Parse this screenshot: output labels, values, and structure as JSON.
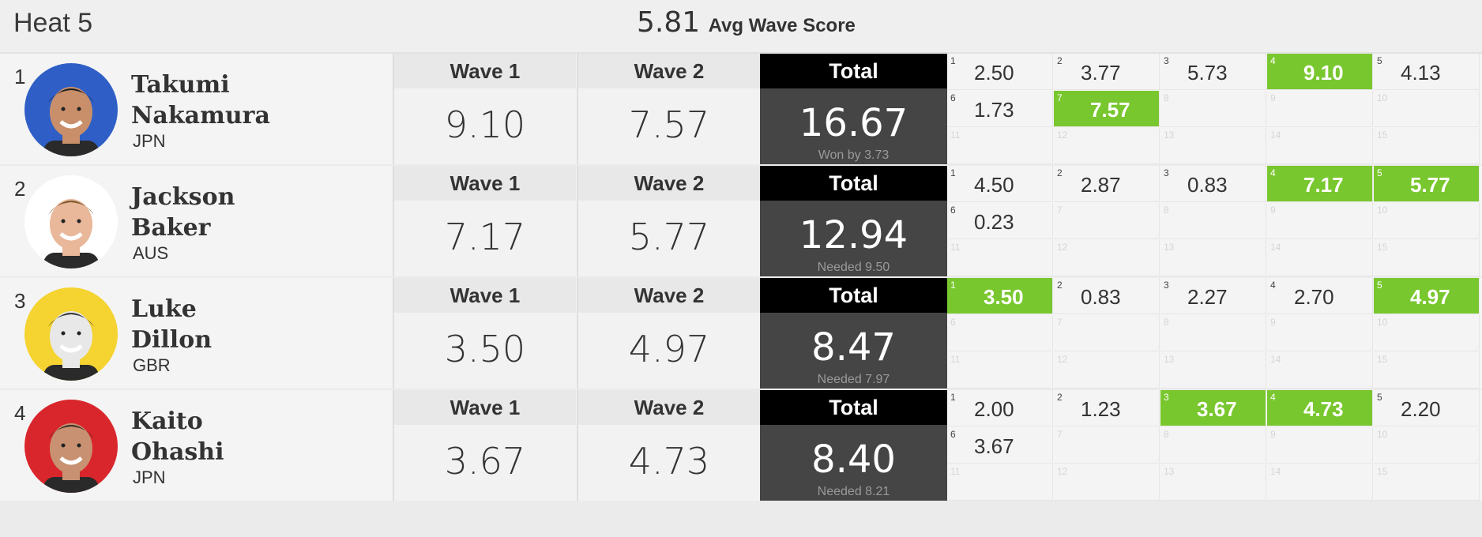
{
  "heat": {
    "title": "Heat 5",
    "avg_value": "5.81",
    "avg_label": "Avg Wave Score"
  },
  "labels": {
    "wave1": "Wave 1",
    "wave2": "Wave 2",
    "total": "Total"
  },
  "colors": {
    "highlight": "#79c72e",
    "total_bg": "#454545",
    "total_header": "#000000"
  },
  "surfers": [
    {
      "rank": "1",
      "first": "Takumi",
      "last": "Nakamura",
      "country": "JPN",
      "avatar_color": "#2f5fc6",
      "wave1": "9.10",
      "wave2": "7.57",
      "total": "16.67",
      "note": "Won by 3.73",
      "waves": [
        {
          "n": "1",
          "v": "2.50",
          "hl": false
        },
        {
          "n": "2",
          "v": "3.77",
          "hl": false
        },
        {
          "n": "3",
          "v": "5.73",
          "hl": false
        },
        {
          "n": "4",
          "v": "9.10",
          "hl": true
        },
        {
          "n": "5",
          "v": "4.13",
          "hl": false
        },
        {
          "n": "6",
          "v": "1.73",
          "hl": false
        },
        {
          "n": "7",
          "v": "7.57",
          "hl": true
        },
        {
          "n": "8",
          "v": "",
          "hl": false
        },
        {
          "n": "9",
          "v": "",
          "hl": false
        },
        {
          "n": "10",
          "v": "",
          "hl": false
        },
        {
          "n": "11",
          "v": "",
          "hl": false
        },
        {
          "n": "12",
          "v": "",
          "hl": false
        },
        {
          "n": "13",
          "v": "",
          "hl": false
        },
        {
          "n": "14",
          "v": "",
          "hl": false
        },
        {
          "n": "15",
          "v": "",
          "hl": false
        }
      ]
    },
    {
      "rank": "2",
      "first": "Jackson",
      "last": "Baker",
      "country": "AUS",
      "avatar_color": "#ffffff",
      "wave1": "7.17",
      "wave2": "5.77",
      "total": "12.94",
      "note": "Needed 9.50",
      "waves": [
        {
          "n": "1",
          "v": "4.50",
          "hl": false
        },
        {
          "n": "2",
          "v": "2.87",
          "hl": false
        },
        {
          "n": "3",
          "v": "0.83",
          "hl": false
        },
        {
          "n": "4",
          "v": "7.17",
          "hl": true
        },
        {
          "n": "5",
          "v": "5.77",
          "hl": true
        },
        {
          "n": "6",
          "v": "0.23",
          "hl": false
        },
        {
          "n": "7",
          "v": "",
          "hl": false
        },
        {
          "n": "8",
          "v": "",
          "hl": false
        },
        {
          "n": "9",
          "v": "",
          "hl": false
        },
        {
          "n": "10",
          "v": "",
          "hl": false
        },
        {
          "n": "11",
          "v": "",
          "hl": false
        },
        {
          "n": "12",
          "v": "",
          "hl": false
        },
        {
          "n": "13",
          "v": "",
          "hl": false
        },
        {
          "n": "14",
          "v": "",
          "hl": false
        },
        {
          "n": "15",
          "v": "",
          "hl": false
        }
      ]
    },
    {
      "rank": "3",
      "first": "Luke",
      "last": "Dillon",
      "country": "GBR",
      "avatar_color": "#f5d330",
      "wave1": "3.50",
      "wave2": "4.97",
      "total": "8.47",
      "note": "Needed 7.97",
      "waves": [
        {
          "n": "1",
          "v": "3.50",
          "hl": true
        },
        {
          "n": "2",
          "v": "0.83",
          "hl": false
        },
        {
          "n": "3",
          "v": "2.27",
          "hl": false
        },
        {
          "n": "4",
          "v": "2.70",
          "hl": false
        },
        {
          "n": "5",
          "v": "4.97",
          "hl": true
        },
        {
          "n": "6",
          "v": "",
          "hl": false
        },
        {
          "n": "7",
          "v": "",
          "hl": false
        },
        {
          "n": "8",
          "v": "",
          "hl": false
        },
        {
          "n": "9",
          "v": "",
          "hl": false
        },
        {
          "n": "10",
          "v": "",
          "hl": false
        },
        {
          "n": "11",
          "v": "",
          "hl": false
        },
        {
          "n": "12",
          "v": "",
          "hl": false
        },
        {
          "n": "13",
          "v": "",
          "hl": false
        },
        {
          "n": "14",
          "v": "",
          "hl": false
        },
        {
          "n": "15",
          "v": "",
          "hl": false
        }
      ]
    },
    {
      "rank": "4",
      "first": "Kaito",
      "last": "Ohashi",
      "country": "JPN",
      "avatar_color": "#d9262c",
      "wave1": "3.67",
      "wave2": "4.73",
      "total": "8.40",
      "note": "Needed 8.21",
      "waves": [
        {
          "n": "1",
          "v": "2.00",
          "hl": false
        },
        {
          "n": "2",
          "v": "1.23",
          "hl": false
        },
        {
          "n": "3",
          "v": "3.67",
          "hl": true
        },
        {
          "n": "4",
          "v": "4.73",
          "hl": true
        },
        {
          "n": "5",
          "v": "2.20",
          "hl": false
        },
        {
          "n": "6",
          "v": "3.67",
          "hl": false
        },
        {
          "n": "7",
          "v": "",
          "hl": false
        },
        {
          "n": "8",
          "v": "",
          "hl": false
        },
        {
          "n": "9",
          "v": "",
          "hl": false
        },
        {
          "n": "10",
          "v": "",
          "hl": false
        },
        {
          "n": "11",
          "v": "",
          "hl": false
        },
        {
          "n": "12",
          "v": "",
          "hl": false
        },
        {
          "n": "13",
          "v": "",
          "hl": false
        },
        {
          "n": "14",
          "v": "",
          "hl": false
        },
        {
          "n": "15",
          "v": "",
          "hl": false
        }
      ]
    }
  ]
}
